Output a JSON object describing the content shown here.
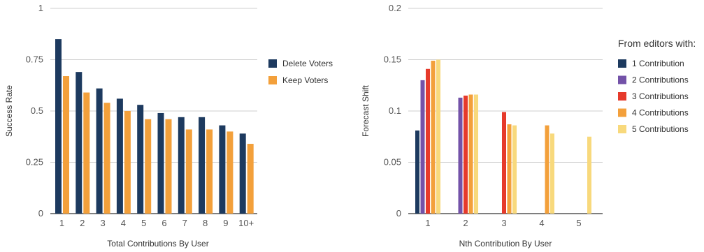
{
  "chart_data": [
    {
      "type": "bar",
      "xlabel": "Total Contributions By User",
      "ylabel": "Success Rate",
      "ylim": [
        0,
        1
      ],
      "yticks": [
        "0",
        "0.25",
        "0.5",
        "0.75",
        "1"
      ],
      "categories": [
        "1",
        "2",
        "3",
        "4",
        "5",
        "6",
        "7",
        "8",
        "9",
        "10+"
      ],
      "grid": true,
      "legend_position": "right",
      "series": [
        {
          "name": "Delete Voters",
          "color": "#1d3a5f",
          "values": [
            0.85,
            0.69,
            0.61,
            0.56,
            0.53,
            0.49,
            0.47,
            0.47,
            0.43,
            0.39
          ]
        },
        {
          "name": "Keep Voters",
          "color": "#f3a03b",
          "values": [
            0.67,
            0.59,
            0.54,
            0.5,
            0.46,
            0.46,
            0.41,
            0.41,
            0.4,
            0.34
          ]
        }
      ]
    },
    {
      "type": "bar",
      "xlabel": "Nth Contribution By User",
      "ylabel": "Forecast Shift",
      "ylim": [
        0,
        0.2
      ],
      "yticks": [
        "0",
        "0.05",
        "0.1",
        "0.15",
        "0.2"
      ],
      "categories": [
        "1",
        "2",
        "3",
        "4",
        "5"
      ],
      "grid": true,
      "legend_position": "right",
      "legend_title": "From editors with:",
      "series": [
        {
          "name": "1 Contribution",
          "color": "#1d3a5f",
          "values": [
            0.081,
            null,
            null,
            null,
            null
          ]
        },
        {
          "name": "2 Contributions",
          "color": "#7352a8",
          "values": [
            0.13,
            0.113,
            null,
            null,
            null
          ]
        },
        {
          "name": "3 Contributions",
          "color": "#e63a2b",
          "values": [
            0.141,
            0.115,
            0.099,
            null,
            null
          ]
        },
        {
          "name": "4 Contributions",
          "color": "#f3a03b",
          "values": [
            0.149,
            0.116,
            0.087,
            0.086,
            null
          ]
        },
        {
          "name": "5 Contributions",
          "color": "#f8d97c",
          "values": [
            0.15,
            0.116,
            0.086,
            0.078,
            0.075
          ]
        }
      ]
    }
  ]
}
